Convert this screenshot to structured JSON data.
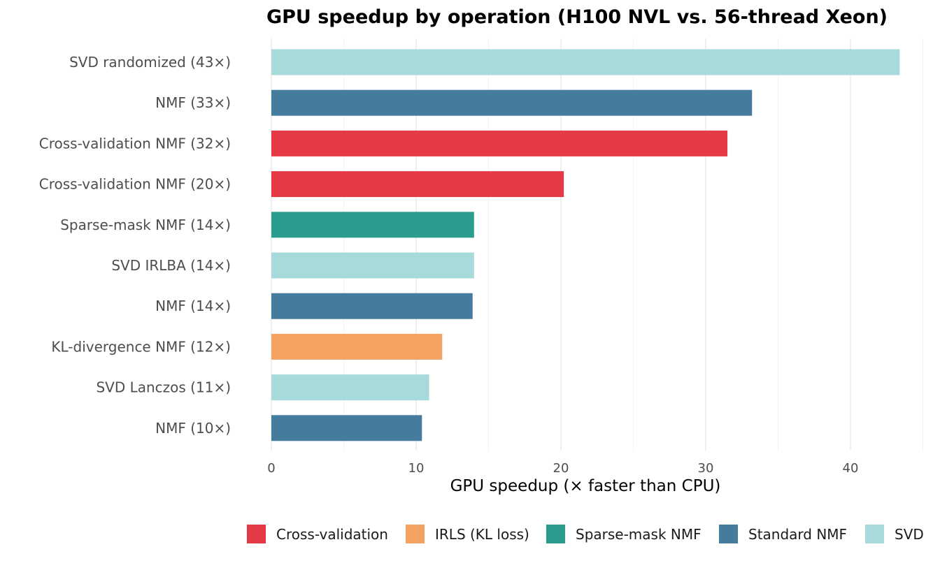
{
  "chart_data": {
    "type": "bar",
    "orientation": "horizontal",
    "title": "GPU speedup by operation (H100 NVL vs. 56-thread Xeon)",
    "xlabel": "GPU speedup (× faster than CPU)",
    "ylabel": "",
    "xlim": [
      0,
      45
    ],
    "xticks": [
      0,
      10,
      20,
      30,
      40
    ],
    "xtick_labels": [
      "0",
      "10",
      "20",
      "30",
      "40"
    ],
    "grid": true,
    "legend_position": "bottom",
    "legend": [
      {
        "name": "Cross-validation",
        "color": "#E63946"
      },
      {
        "name": "IRLS (KL loss)",
        "color": "#F4A261"
      },
      {
        "name": "Sparse-mask NMF",
        "color": "#2A9D8F"
      },
      {
        "name": "Standard NMF",
        "color": "#457B9D"
      },
      {
        "name": "SVD",
        "color": "#A8DADC"
      }
    ],
    "categories": [
      "SVD randomized  (43×)",
      "NMF  (33×)",
      "Cross-validation NMF  (32×)",
      "Cross-validation NMF  (20×)",
      "Sparse-mask NMF  (14×)",
      "SVD IRLBA  (14×)",
      "NMF  (14×)",
      "KL-divergence NMF  (12×)",
      "SVD Lanczos  (11×)",
      "NMF  (10×)"
    ],
    "values": [
      43.4,
      33.2,
      31.5,
      20.2,
      14.0,
      14.0,
      13.9,
      11.8,
      10.9,
      10.4
    ],
    "groups": [
      "SVD",
      "Standard NMF",
      "Cross-validation",
      "Cross-validation",
      "Sparse-mask NMF",
      "SVD",
      "Standard NMF",
      "IRLS (KL loss)",
      "SVD",
      "Standard NMF"
    ]
  }
}
